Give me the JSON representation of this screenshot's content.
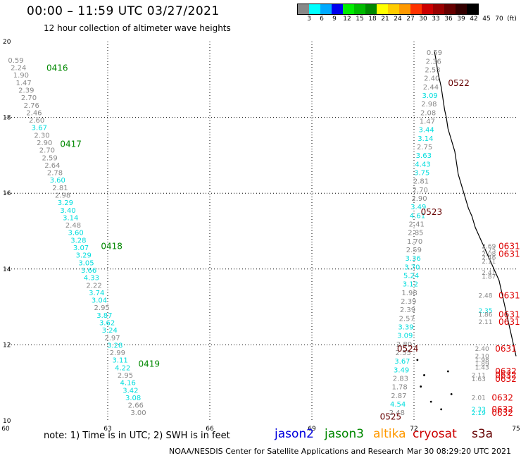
{
  "header": {
    "title": "00:00 – 11:59 UTC 03/27/2021",
    "subtitle": "12 hour collection of altimeter wave heights"
  },
  "legend": {
    "labels": [
      "3",
      "6",
      "9",
      "12",
      "15",
      "18",
      "21",
      "24",
      "27",
      "30",
      "33",
      "36",
      "39",
      "42",
      "45",
      "70",
      "(ft)"
    ],
    "colors": [
      "#888888",
      "#00ffff",
      "#00aaff",
      "#0000ee",
      "#00ee00",
      "#00bb00",
      "#008800",
      "#ffff00",
      "#ffcc00",
      "#ff9900",
      "#ff3300",
      "#cc0000",
      "#990000",
      "#660000",
      "#330000",
      "#000000"
    ]
  },
  "footer": {
    "note": "note: 1) Time is in UTC; 2) SWH is in feet",
    "satellites": [
      {
        "name": "jason2",
        "color": "#0000dd"
      },
      {
        "name": "jason3",
        "color": "#008800"
      },
      {
        "name": "altika",
        "color": "#ff9900"
      },
      {
        "name": "cryosat",
        "color": "#cc0000"
      },
      {
        "name": "s3a",
        "color": "#660000"
      }
    ],
    "credit": "NOAA/NESDIS Center for Satellite Applications and Research",
    "timestamp": "Mar 30 08:29:20 UTC 2021"
  },
  "chart_data": {
    "type": "scatter",
    "xlim": [
      60,
      75
    ],
    "ylim": [
      10,
      20
    ],
    "x_ticks": [
      60,
      63,
      66,
      69,
      72,
      75
    ],
    "y_ticks": [
      10,
      12,
      14,
      16,
      18,
      20
    ],
    "grid": true,
    "left_track": {
      "start": [
        60.3,
        19.5
      ],
      "end": [
        63.9,
        10.2
      ],
      "values": [
        "0.59",
        "2.24",
        "1.90",
        "1.47",
        "2.39",
        "2.70",
        "2.76",
        "2.46",
        "2.60",
        "3.67",
        "2.30",
        "2.90",
        "2.70",
        "2.59",
        "2.64",
        "2.78",
        "3.60",
        "2.81",
        "2.98",
        "3.29",
        "3.40",
        "3.14",
        "2.48",
        "3.60",
        "3.28",
        "3.07",
        "3.29",
        "3.05",
        "3.66",
        "4.33",
        "2.22",
        "3.74",
        "3.04",
        "2.95",
        "3.87",
        "3.62",
        "3.24",
        "2.97",
        "3.28",
        "2.99",
        "3.11",
        "4.22",
        "2.95",
        "4.16",
        "3.42",
        "3.08",
        "2.66",
        "3.00"
      ],
      "colors": [
        "#888888",
        "#888888",
        "#888888",
        "#888888",
        "#888888",
        "#888888",
        "#888888",
        "#888888",
        "#888888",
        "#00dddd",
        "#888888",
        "#888888",
        "#888888",
        "#888888",
        "#888888",
        "#888888",
        "#00dddd",
        "#888888",
        "#888888",
        "#00dddd",
        "#00dddd",
        "#00dddd",
        "#888888",
        "#00dddd",
        "#00dddd",
        "#00dddd",
        "#00dddd",
        "#00dddd",
        "#00dddd",
        "#00dddd",
        "#888888",
        "#00dddd",
        "#00dddd",
        "#888888",
        "#00dddd",
        "#00dddd",
        "#00dddd",
        "#888888",
        "#00dddd",
        "#888888",
        "#00dddd",
        "#00dddd",
        "#888888",
        "#00dddd",
        "#00dddd",
        "#00dddd",
        "#888888",
        "#888888"
      ],
      "times": [
        {
          "label": "0416",
          "x": 61.2,
          "y": 19.3,
          "color": "#008800"
        },
        {
          "label": "0417",
          "x": 61.6,
          "y": 17.3,
          "color": "#008800"
        },
        {
          "label": "0418",
          "x": 62.8,
          "y": 14.6,
          "color": "#008800"
        },
        {
          "label": "0419",
          "x": 63.9,
          "y": 11.5,
          "color": "#008800"
        }
      ]
    },
    "right_track": {
      "start": [
        72.6,
        19.7
      ],
      "end": [
        71.5,
        10.2
      ],
      "values": [
        "0.59",
        "2.36",
        "2.53",
        "2.40",
        "2.44",
        "3.09",
        "2.98",
        "2.08",
        "1.47",
        "3.44",
        "3.14",
        "2.75",
        "3.63",
        "4.43",
        "3.75",
        "2.81",
        "2.70",
        "2.90",
        "3.49",
        "4.61",
        "2.41",
        "2.85",
        "1.70",
        "2.59",
        "3.36",
        "3.70",
        "5.24",
        "3.12",
        "1.98",
        "2.39",
        "2.39",
        "2.57",
        "3.39",
        "3.09",
        "2.80",
        "2.55",
        "3.67",
        "3.49",
        "2.83",
        "1.78",
        "2.87",
        "4.54",
        "2.48"
      ],
      "colors": [
        "#888888",
        "#888888",
        "#888888",
        "#888888",
        "#888888",
        "#00dddd",
        "#888888",
        "#888888",
        "#888888",
        "#00dddd",
        "#00dddd",
        "#888888",
        "#00dddd",
        "#00dddd",
        "#00dddd",
        "#888888",
        "#888888",
        "#888888",
        "#00dddd",
        "#00dddd",
        "#888888",
        "#888888",
        "#888888",
        "#888888",
        "#00dddd",
        "#00dddd",
        "#00dddd",
        "#00dddd",
        "#888888",
        "#888888",
        "#888888",
        "#888888",
        "#00dddd",
        "#00dddd",
        "#888888",
        "#888888",
        "#00dddd",
        "#00dddd",
        "#888888",
        "#888888",
        "#888888",
        "#00dddd",
        "#888888"
      ],
      "times": [
        {
          "label": "0522",
          "x": 73.0,
          "y": 18.9,
          "color": "#660000"
        },
        {
          "label": "0523",
          "x": 72.2,
          "y": 15.5,
          "color": "#660000"
        },
        {
          "label": "0524",
          "x": 71.5,
          "y": 11.9,
          "color": "#660000"
        },
        {
          "label": "0525",
          "x": 71.0,
          "y": 10.1,
          "color": "#660000"
        }
      ]
    },
    "far_right_track": {
      "points": [
        {
          "x": 74.2,
          "y": 14.6,
          "v": "2.69",
          "c": "#888888"
        },
        {
          "x": 74.2,
          "y": 14.5,
          "v": "2.75",
          "c": "#888888"
        },
        {
          "x": 74.2,
          "y": 14.4,
          "v": "2.08",
          "c": "#888888"
        },
        {
          "x": 74.2,
          "y": 14.3,
          "v": "2.46",
          "c": "#888888"
        },
        {
          "x": 74.2,
          "y": 14.2,
          "v": "2.11",
          "c": "#888888"
        },
        {
          "x": 74.2,
          "y": 13.9,
          "v": "2.41",
          "c": "#888888"
        },
        {
          "x": 74.2,
          "y": 13.8,
          "v": "1.87",
          "c": "#888888"
        },
        {
          "x": 74.1,
          "y": 13.3,
          "v": "2.48",
          "c": "#888888"
        },
        {
          "x": 74.1,
          "y": 12.9,
          "v": "2.35",
          "c": "#00dddd"
        },
        {
          "x": 74.1,
          "y": 12.8,
          "v": "1.86",
          "c": "#888888"
        },
        {
          "x": 74.1,
          "y": 12.6,
          "v": "2.11",
          "c": "#888888"
        },
        {
          "x": 74.0,
          "y": 11.9,
          "v": "2.40",
          "c": "#888888"
        },
        {
          "x": 74.0,
          "y": 11.7,
          "v": "2.10",
          "c": "#888888"
        },
        {
          "x": 74.0,
          "y": 11.6,
          "v": "1.98",
          "c": "#888888"
        },
        {
          "x": 74.0,
          "y": 11.5,
          "v": "1.89",
          "c": "#888888"
        },
        {
          "x": 74.0,
          "y": 11.4,
          "v": "1.43",
          "c": "#888888"
        },
        {
          "x": 73.9,
          "y": 11.2,
          "v": "2.11",
          "c": "#888888"
        },
        {
          "x": 73.9,
          "y": 11.1,
          "v": "1.63",
          "c": "#888888"
        },
        {
          "x": 73.9,
          "y": 10.6,
          "v": "2.01",
          "c": "#888888"
        },
        {
          "x": 73.9,
          "y": 10.3,
          "v": "2.33",
          "c": "#00dddd"
        },
        {
          "x": 73.9,
          "y": 10.2,
          "v": "2.19",
          "c": "#00dddd"
        }
      ],
      "times": [
        {
          "label": "0631",
          "x": 74.8,
          "y": 14.6,
          "color": "#dd0000"
        },
        {
          "label": "0631",
          "x": 74.8,
          "y": 14.4,
          "color": "#dd0000"
        },
        {
          "label": "0631",
          "x": 74.8,
          "y": 13.3,
          "color": "#dd0000"
        },
        {
          "label": "0631",
          "x": 74.8,
          "y": 12.8,
          "color": "#dd0000"
        },
        {
          "label": "0631",
          "x": 74.8,
          "y": 12.6,
          "color": "#dd0000"
        },
        {
          "label": "0631",
          "x": 74.7,
          "y": 11.9,
          "color": "#dd0000"
        },
        {
          "label": "0632",
          "x": 74.7,
          "y": 11.3,
          "color": "#dd0000"
        },
        {
          "label": "0632",
          "x": 74.7,
          "y": 11.2,
          "color": "#dd0000"
        },
        {
          "label": "0632",
          "x": 74.7,
          "y": 11.1,
          "color": "#dd0000"
        },
        {
          "label": "0632",
          "x": 74.6,
          "y": 10.6,
          "color": "#dd0000"
        },
        {
          "label": "0632",
          "x": 74.6,
          "y": 10.3,
          "color": "#dd0000"
        },
        {
          "label": "0632",
          "x": 74.6,
          "y": 10.2,
          "color": "#dd0000"
        }
      ]
    },
    "coastline": [
      [
        72.6,
        19.75
      ],
      [
        72.65,
        19.5
      ],
      [
        72.7,
        19.2
      ],
      [
        72.75,
        19.0
      ],
      [
        72.8,
        18.8
      ],
      [
        72.85,
        18.5
      ],
      [
        72.9,
        18.2
      ],
      [
        72.95,
        18.0
      ],
      [
        73.0,
        17.7
      ],
      [
        73.1,
        17.4
      ],
      [
        73.2,
        17.1
      ],
      [
        73.25,
        16.8
      ],
      [
        73.3,
        16.5
      ],
      [
        73.4,
        16.2
      ],
      [
        73.5,
        15.9
      ],
      [
        73.6,
        15.6
      ],
      [
        73.7,
        15.4
      ],
      [
        73.8,
        15.1
      ],
      [
        73.9,
        14.9
      ],
      [
        74.0,
        14.7
      ],
      [
        74.1,
        14.5
      ],
      [
        74.2,
        14.3
      ],
      [
        74.3,
        14.1
      ],
      [
        74.4,
        13.9
      ],
      [
        74.5,
        13.7
      ],
      [
        74.55,
        13.5
      ],
      [
        74.6,
        13.3
      ],
      [
        74.65,
        13.1
      ],
      [
        74.7,
        12.9
      ],
      [
        74.75,
        12.7
      ],
      [
        74.8,
        12.5
      ],
      [
        74.85,
        12.3
      ],
      [
        74.9,
        12.1
      ],
      [
        74.95,
        11.9
      ],
      [
        75.0,
        11.7
      ]
    ],
    "islands": [
      [
        72.1,
        11.6
      ],
      [
        72.3,
        11.2
      ],
      [
        73.0,
        11.3
      ],
      [
        72.2,
        10.9
      ],
      [
        73.1,
        10.7
      ],
      [
        72.5,
        10.5
      ],
      [
        72.8,
        10.3
      ]
    ]
  }
}
